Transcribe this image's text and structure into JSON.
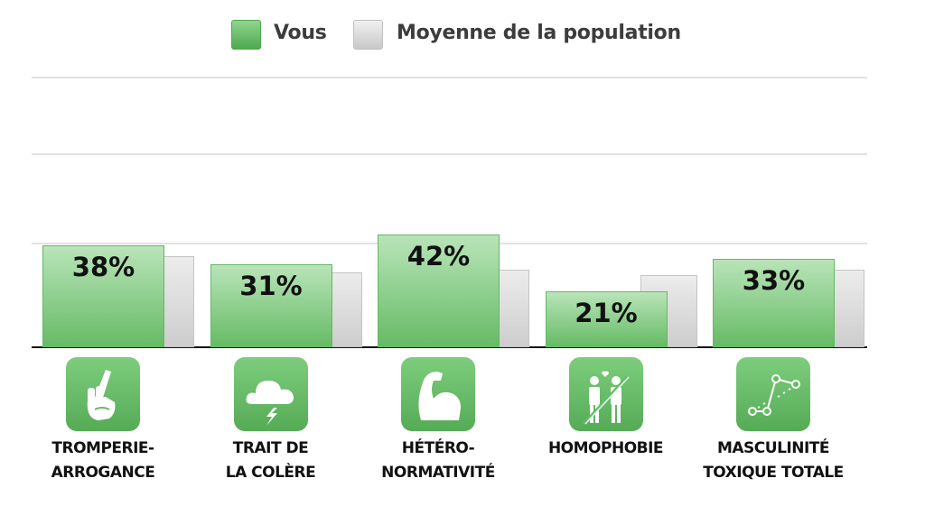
{
  "chart_data": {
    "type": "bar",
    "title": "",
    "xlabel": "",
    "ylabel": "",
    "ylim": [
      0,
      100
    ],
    "categories": [
      "TROMPERIE-ARROGANCE",
      "TRAIT DE LA COLÈRE",
      "HÉTÉRO-NORMATIVITÉ",
      "HOMOPHOBIE",
      "MASCULINITÉ TOXIQUE TOTALE"
    ],
    "category_lines": [
      [
        "TROMPERIE-",
        "ARROGANCE"
      ],
      [
        "TRAIT DE",
        "LA COLÈRE"
      ],
      [
        "HÉTÉRO-",
        "NORMATIVITÉ"
      ],
      [
        "HOMOPHOBIE",
        ""
      ],
      [
        "MASCULINITÉ",
        "TOXIQUE TOTALE"
      ]
    ],
    "category_icons": [
      "crossed-fingers-icon",
      "storm-cloud-icon",
      "flexed-arm-icon",
      "crossed-out-couple-icon",
      "trend-line-icon"
    ],
    "series": [
      {
        "name": "Vous",
        "values": [
          38,
          31,
          42,
          21,
          33
        ],
        "labels": [
          "38%",
          "31%",
          "42%",
          "21%",
          "33%"
        ],
        "color": "#66bb66"
      },
      {
        "name": "Moyenne de la population",
        "values": [
          34,
          28,
          29,
          27,
          29
        ],
        "color": "#d0d0d0"
      }
    ],
    "legend": {
      "placement": "top-center",
      "items": [
        "Vous",
        "Moyenne de la population"
      ]
    },
    "grid": true
  }
}
